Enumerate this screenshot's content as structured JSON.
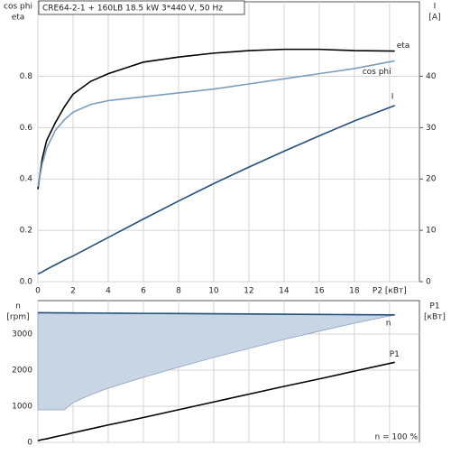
{
  "chart_data": [
    {
      "type": "line",
      "title": "CRE64-2-1 + 160LB   18.5 kW   3*440 V, 50 Hz",
      "ylabel": [
        "cos phi",
        "eta"
      ],
      "y2label": [
        "I",
        "[A]"
      ],
      "x": [
        0,
        0.25,
        0.5,
        1,
        1.5,
        2,
        3,
        4,
        6,
        8,
        10,
        12,
        14,
        16,
        18,
        20.3
      ],
      "series": [
        {
          "name": "eta",
          "color": "#000000",
          "axis": "y",
          "values": [
            0.36,
            0.48,
            0.55,
            0.62,
            0.68,
            0.73,
            0.78,
            0.81,
            0.855,
            0.875,
            0.89,
            0.9,
            0.905,
            0.905,
            0.9,
            0.898
          ]
        },
        {
          "name": "cos phi",
          "color": "#7b9cbc",
          "axis": "y",
          "values": [
            0.37,
            0.46,
            0.52,
            0.59,
            0.63,
            0.66,
            0.69,
            0.705,
            0.72,
            0.735,
            0.75,
            0.77,
            0.79,
            0.81,
            0.83,
            0.86
          ]
        },
        {
          "name": "I",
          "color": "#24507e",
          "axis": "y2",
          "values": [
            1.5,
            1.9,
            2.4,
            3.3,
            4.2,
            5.0,
            6.8,
            8.6,
            12.2,
            15.7,
            19.1,
            22.3,
            25.4,
            28.4,
            31.3,
            34.3
          ]
        }
      ],
      "xlim": [
        0,
        21.7
      ],
      "ylim": [
        0,
        1.09
      ],
      "y2lim": [
        0,
        54.5
      ],
      "xticks": [
        0,
        2,
        4,
        6,
        8,
        10,
        12,
        14,
        16,
        18,
        {
          "value": 20,
          "label": "P2 [кВт]"
        }
      ],
      "yticks": [
        {
          "value": 0,
          "label": "0.0"
        },
        0.2,
        0.4,
        0.6,
        0.8
      ],
      "y2ticks": [
        0,
        10,
        20,
        30,
        40
      ],
      "grid": true
    },
    {
      "type": "line",
      "ylabel": [
        "n",
        "[rpm]"
      ],
      "y2label": [
        "P1",
        "[кВт]"
      ],
      "annotation": "n = 100 %",
      "x": [
        0,
        0.25,
        0.5,
        1,
        1.5,
        2,
        3,
        4,
        6,
        8,
        10,
        12,
        14,
        16,
        18,
        20.3
      ],
      "area": {
        "color": "#c8d5e5",
        "lower": [
          900,
          900,
          900,
          900,
          900,
          1100,
          1320,
          1500,
          1800,
          2080,
          2350,
          2600,
          2850,
          3080,
          3300,
          3530
        ]
      },
      "series": [
        {
          "name": "n",
          "color": "#1f4e79",
          "axis": "y",
          "values": [
            3590,
            3589,
            3588,
            3587,
            3585,
            3584,
            3581,
            3578,
            3572,
            3566,
            3560,
            3554,
            3548,
            3542,
            3536,
            3530
          ]
        },
        {
          "name": "P1",
          "color": "#000000",
          "axis": "y2",
          "values": [
            0.5,
            0.8,
            1.0,
            1.6,
            2.1,
            2.7,
            3.8,
            4.9,
            7.0,
            9.2,
            11.4,
            13.6,
            15.8,
            17.9,
            20.1,
            22.6
          ]
        }
      ],
      "xlim": [
        0,
        21.7
      ],
      "ylim": [
        0,
        3925
      ],
      "y2lim": [
        0,
        40
      ],
      "xticks": [
        0,
        2,
        4,
        6,
        8,
        10,
        12,
        14,
        16,
        18,
        20
      ],
      "yticks": [
        0,
        1000,
        2000,
        3000
      ],
      "grid": true
    }
  ]
}
